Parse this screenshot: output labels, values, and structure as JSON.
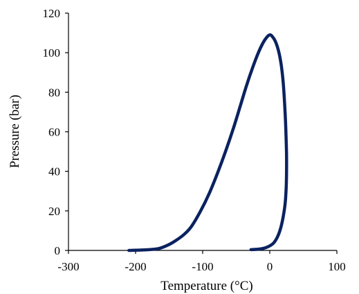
{
  "chart_data": {
    "type": "line",
    "title": "",
    "xlabel": "Temperature (°C)",
    "ylabel": "Pressure (bar)",
    "xlim": [
      -300,
      100
    ],
    "ylim": [
      0,
      120
    ],
    "x_ticks": [
      -300,
      -200,
      -100,
      0,
      100
    ],
    "x_tick_labels": [
      "-300",
      "-200",
      "-100",
      "0",
      "100"
    ],
    "y_ticks": [
      0,
      20,
      40,
      60,
      80,
      100,
      120
    ],
    "y_tick_labels": [
      "0",
      "20",
      "40",
      "60",
      "80",
      "100",
      "120"
    ],
    "grid": false,
    "legend": "none",
    "series": [
      {
        "color": "#0b2260",
        "points": [
          [
            -210,
            0
          ],
          [
            -185,
            0.3
          ],
          [
            -165,
            1
          ],
          [
            -150,
            3
          ],
          [
            -140,
            5
          ],
          [
            -128,
            8
          ],
          [
            -117,
            12
          ],
          [
            -103,
            20
          ],
          [
            -90,
            29
          ],
          [
            -78,
            39
          ],
          [
            -66,
            50
          ],
          [
            -54,
            62
          ],
          [
            -44,
            73
          ],
          [
            -35,
            83
          ],
          [
            -26,
            92
          ],
          [
            -17,
            100
          ],
          [
            -10,
            105
          ],
          [
            -4,
            108
          ],
          [
            0,
            109
          ],
          [
            3,
            108.5
          ],
          [
            8,
            106
          ],
          [
            13,
            101
          ],
          [
            17,
            94
          ],
          [
            20,
            85
          ],
          [
            22,
            75
          ],
          [
            23.5,
            65
          ],
          [
            24.5,
            55
          ],
          [
            25,
            48
          ],
          [
            25,
            40
          ],
          [
            24.5,
            32
          ],
          [
            23,
            24
          ],
          [
            20,
            17
          ],
          [
            16,
            11
          ],
          [
            11,
            6.5
          ],
          [
            5,
            3.5
          ],
          [
            -5,
            1.5
          ],
          [
            -15,
            0.7
          ],
          [
            -28,
            0.4
          ]
        ]
      }
    ]
  }
}
